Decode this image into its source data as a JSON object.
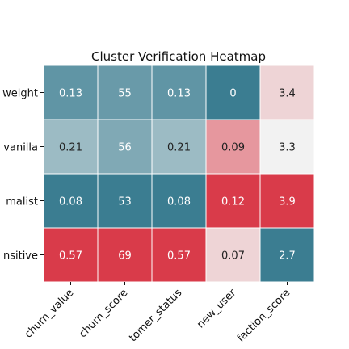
{
  "chart_data": {
    "type": "heatmap",
    "title": "Cluster Verification Heatmap",
    "xlabel": "",
    "ylabel": "",
    "rows": [
      "weight",
      "vanilla",
      "malist",
      "nsitive"
    ],
    "columns": [
      "churn_value",
      "churn_score",
      "tomer_status",
      "new_user",
      "faction_score"
    ],
    "values": [
      [
        0.13,
        55,
        0.13,
        0,
        3.4
      ],
      [
        0.21,
        56,
        0.21,
        0.09,
        3.3
      ],
      [
        0.08,
        53,
        0.08,
        0.12,
        3.9
      ],
      [
        0.57,
        69,
        0.57,
        0.07,
        2.7
      ]
    ],
    "labels": [
      [
        "0.13",
        "55",
        "0.13",
        "0",
        "3.4"
      ],
      [
        "0.21",
        "56",
        "0.21",
        "0.09",
        "3.3"
      ],
      [
        "0.08",
        "53",
        "0.08",
        "0.12",
        "3.9"
      ],
      [
        "0.57",
        "69",
        "0.57",
        "0.07",
        "2.7"
      ]
    ],
    "colormap": "diverging teal-to-red, normalized per column",
    "colors": {
      "low": "#3b7d91",
      "mid": "#f2f2f2",
      "high": "#d93b4a",
      "grid": "#ffffff",
      "dark_text": "#222222",
      "light_text": "#ffffff"
    },
    "grid": true,
    "legend": "none"
  }
}
